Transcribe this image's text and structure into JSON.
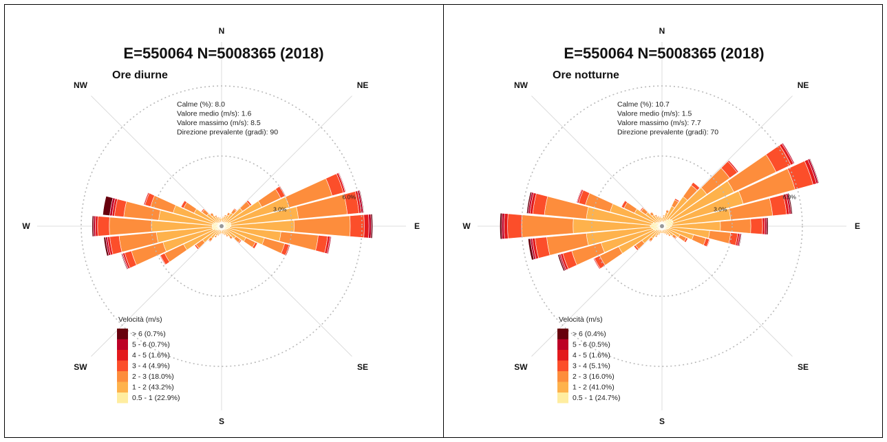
{
  "chart_data": [
    {
      "type": "wind-rose",
      "title": "E=550064 N=5008365 (2018)",
      "subtitle": "Ore diurne",
      "compass": [
        "N",
        "NE",
        "E",
        "SE",
        "S",
        "SW",
        "W",
        "NW"
      ],
      "stats": {
        "calme": "Calme (%): 8.0",
        "medio": "Valore medio (m/s): 1.6",
        "massimo": "Valore massimo (m/s): 8.5",
        "direzione": "Direzione prevalente (gradi): 90"
      },
      "rings": [
        {
          "value": 3.0,
          "label": "3.0%"
        },
        {
          "value": 6.0,
          "label": "6.0%"
        }
      ],
      "legend_title": "Velocità (m/s)",
      "legend": [
        {
          "label": "> 6 (0.7%)",
          "color": "#67000d"
        },
        {
          "label": "5 - 6 (0.7%)",
          "color": "#bd0026"
        },
        {
          "label": "4 - 5 (1.6%)",
          "color": "#e31a1c"
        },
        {
          "label": "3 - 4 (4.9%)",
          "color": "#fc4e2a"
        },
        {
          "label": "2 - 3 (18.0%)",
          "color": "#fd8d3c"
        },
        {
          "label": "1 - 2 (43.2%)",
          "color": "#feb24c"
        },
        {
          "label": "0.5 - 1 (22.9%)",
          "color": "#ffeda0"
        }
      ],
      "sectors": [
        {
          "dir": 0,
          "values": [
            0.16,
            0.18,
            0.02,
            0,
            0,
            0,
            0
          ]
        },
        {
          "dir": 10,
          "values": [
            0.16,
            0.22,
            0.03,
            0,
            0,
            0,
            0
          ]
        },
        {
          "dir": 20,
          "values": [
            0.17,
            0.28,
            0.06,
            0.01,
            0,
            0,
            0
          ]
        },
        {
          "dir": 30,
          "values": [
            0.18,
            0.35,
            0.12,
            0.02,
            0,
            0,
            0
          ]
        },
        {
          "dir": 40,
          "values": [
            0.2,
            0.5,
            0.2,
            0.04,
            0,
            0,
            0
          ]
        },
        {
          "dir": 50,
          "values": [
            0.25,
            0.85,
            0.4,
            0.08,
            0.01,
            0,
            0
          ]
        },
        {
          "dir": 60,
          "values": [
            0.3,
            1.6,
            0.9,
            0.2,
            0.03,
            0,
            0
          ]
        },
        {
          "dir": 70,
          "values": [
            0.4,
            2.6,
            1.9,
            0.5,
            0.08,
            0.03,
            0.02
          ]
        },
        {
          "dir": 80,
          "values": [
            0.4,
            2.9,
            2.1,
            0.5,
            0.1,
            0.08,
            0.03
          ]
        },
        {
          "dir": 90,
          "values": [
            0.4,
            2.7,
            2.4,
            0.6,
            0.2,
            0.1,
            0.06
          ]
        },
        {
          "dir": 100,
          "values": [
            0.35,
            2.2,
            1.6,
            0.4,
            0.1,
            0.05,
            0.02
          ]
        },
        {
          "dir": 110,
          "values": [
            0.3,
            1.6,
            0.9,
            0.2,
            0.04,
            0,
            0
          ]
        },
        {
          "dir": 120,
          "values": [
            0.25,
            0.9,
            0.45,
            0.1,
            0.01,
            0,
            0
          ]
        },
        {
          "dir": 130,
          "values": [
            0.2,
            0.55,
            0.25,
            0.05,
            0,
            0,
            0
          ]
        },
        {
          "dir": 140,
          "values": [
            0.18,
            0.38,
            0.12,
            0.02,
            0,
            0,
            0
          ]
        },
        {
          "dir": 150,
          "values": [
            0.16,
            0.28,
            0.07,
            0.01,
            0,
            0,
            0
          ]
        },
        {
          "dir": 160,
          "values": [
            0.15,
            0.22,
            0.04,
            0,
            0,
            0,
            0
          ]
        },
        {
          "dir": 170,
          "values": [
            0.15,
            0.18,
            0.03,
            0,
            0,
            0,
            0
          ]
        },
        {
          "dir": 180,
          "values": [
            0.15,
            0.17,
            0.02,
            0,
            0,
            0,
            0
          ]
        },
        {
          "dir": 190,
          "values": [
            0.15,
            0.18,
            0.03,
            0,
            0,
            0,
            0
          ]
        },
        {
          "dir": 200,
          "values": [
            0.16,
            0.22,
            0.05,
            0,
            0,
            0,
            0
          ]
        },
        {
          "dir": 210,
          "values": [
            0.17,
            0.3,
            0.08,
            0.01,
            0,
            0,
            0
          ]
        },
        {
          "dir": 220,
          "values": [
            0.2,
            0.45,
            0.15,
            0.03,
            0,
            0,
            0
          ]
        },
        {
          "dir": 230,
          "values": [
            0.25,
            0.75,
            0.35,
            0.07,
            0.01,
            0,
            0
          ]
        },
        {
          "dir": 240,
          "values": [
            0.3,
            1.5,
            0.9,
            0.2,
            0.03,
            0.01,
            0
          ]
        },
        {
          "dir": 250,
          "values": [
            0.4,
            2.2,
            1.4,
            0.3,
            0.08,
            0.04,
            0.03
          ]
        },
        {
          "dir": 260,
          "values": [
            0.4,
            2.4,
            1.6,
            0.4,
            0.1,
            0.08,
            0.08
          ]
        },
        {
          "dir": 270,
          "values": [
            0.4,
            2.6,
            1.8,
            0.5,
            0.1,
            0.08,
            0.06
          ]
        },
        {
          "dir": 280,
          "values": [
            0.4,
            2.3,
            1.5,
            0.4,
            0.1,
            0.1,
            0.3
          ]
        },
        {
          "dir": 290,
          "values": [
            0.35,
            1.8,
            1.0,
            0.25,
            0.05,
            0.02,
            0
          ]
        },
        {
          "dir": 300,
          "values": [
            0.3,
            1.0,
            0.5,
            0.12,
            0.02,
            0,
            0
          ]
        },
        {
          "dir": 310,
          "values": [
            0.22,
            0.55,
            0.25,
            0.05,
            0,
            0,
            0
          ]
        },
        {
          "dir": 320,
          "values": [
            0.19,
            0.38,
            0.13,
            0.02,
            0,
            0,
            0
          ]
        },
        {
          "dir": 330,
          "values": [
            0.17,
            0.28,
            0.07,
            0.01,
            0,
            0,
            0
          ]
        },
        {
          "dir": 340,
          "values": [
            0.16,
            0.22,
            0.04,
            0,
            0,
            0,
            0
          ]
        },
        {
          "dir": 350,
          "values": [
            0.16,
            0.19,
            0.03,
            0,
            0,
            0,
            0
          ]
        }
      ]
    },
    {
      "type": "wind-rose",
      "title": "E=550064 N=5008365 (2018)",
      "subtitle": "Ore notturne",
      "compass": [
        "N",
        "NE",
        "E",
        "SE",
        "S",
        "SW",
        "W",
        "NW"
      ],
      "stats": {
        "calme": "Calme (%): 10.7",
        "medio": "Valore medio (m/s): 1.5",
        "massimo": "Valore massimo (m/s): 7.7",
        "direzione": "Direzione prevalente (gradi): 70"
      },
      "rings": [
        {
          "value": 3.0,
          "label": "3.0%"
        },
        {
          "value": 6.0,
          "label": "6.0%"
        }
      ],
      "legend_title": "Velocità (m/s)",
      "legend": [
        {
          "label": "> 6 (0.4%)",
          "color": "#67000d"
        },
        {
          "label": "5 - 6 (0.5%)",
          "color": "#bd0026"
        },
        {
          "label": "4 - 5 (1.6%)",
          "color": "#e31a1c"
        },
        {
          "label": "3 - 4 (5.1%)",
          "color": "#fc4e2a"
        },
        {
          "label": "2 - 3 (16.0%)",
          "color": "#fd8d3c"
        },
        {
          "label": "1 - 2 (41.0%)",
          "color": "#feb24c"
        },
        {
          "label": "0.5 - 1 (24.7%)",
          "color": "#ffeda0"
        }
      ],
      "sectors": [
        {
          "dir": 0,
          "values": [
            0.18,
            0.18,
            0.02,
            0,
            0,
            0,
            0
          ]
        },
        {
          "dir": 10,
          "values": [
            0.18,
            0.25,
            0.05,
            0,
            0,
            0,
            0
          ]
        },
        {
          "dir": 20,
          "values": [
            0.2,
            0.4,
            0.12,
            0.02,
            0,
            0,
            0
          ]
        },
        {
          "dir": 30,
          "values": [
            0.25,
            0.7,
            0.3,
            0.06,
            0,
            0,
            0
          ]
        },
        {
          "dir": 40,
          "values": [
            0.35,
            1.2,
            0.6,
            0.15,
            0.02,
            0,
            0
          ]
        },
        {
          "dir": 50,
          "values": [
            0.45,
            1.9,
            1.2,
            0.4,
            0.06,
            0.02,
            0
          ]
        },
        {
          "dir": 60,
          "values": [
            0.5,
            2.9,
            2.0,
            0.7,
            0.12,
            0.05,
            0.02
          ]
        },
        {
          "dir": 70,
          "values": [
            0.5,
            3.1,
            2.3,
            0.8,
            0.15,
            0.08,
            0.03
          ]
        },
        {
          "dir": 80,
          "values": [
            0.45,
            2.5,
            1.8,
            0.6,
            0.12,
            0.08,
            0.05
          ]
        },
        {
          "dir": 90,
          "values": [
            0.4,
            2.1,
            1.3,
            0.5,
            0.1,
            0.08,
            0.06
          ]
        },
        {
          "dir": 100,
          "values": [
            0.35,
            1.7,
            0.9,
            0.3,
            0.08,
            0.06,
            0.03
          ]
        },
        {
          "dir": 110,
          "values": [
            0.3,
            1.1,
            0.55,
            0.15,
            0.03,
            0.01,
            0
          ]
        },
        {
          "dir": 120,
          "values": [
            0.25,
            0.6,
            0.3,
            0.08,
            0.01,
            0,
            0
          ]
        },
        {
          "dir": 130,
          "values": [
            0.2,
            0.4,
            0.15,
            0.04,
            0,
            0,
            0
          ]
        },
        {
          "dir": 140,
          "values": [
            0.18,
            0.28,
            0.08,
            0.01,
            0,
            0,
            0
          ]
        },
        {
          "dir": 150,
          "values": [
            0.16,
            0.22,
            0.05,
            0,
            0,
            0,
            0
          ]
        },
        {
          "dir": 160,
          "values": [
            0.15,
            0.18,
            0.03,
            0,
            0,
            0,
            0
          ]
        },
        {
          "dir": 170,
          "values": [
            0.15,
            0.16,
            0.02,
            0,
            0,
            0,
            0
          ]
        },
        {
          "dir": 180,
          "values": [
            0.15,
            0.15,
            0.02,
            0,
            0,
            0,
            0
          ]
        },
        {
          "dir": 190,
          "values": [
            0.15,
            0.16,
            0.02,
            0,
            0,
            0,
            0
          ]
        },
        {
          "dir": 200,
          "values": [
            0.16,
            0.2,
            0.04,
            0,
            0,
            0,
            0
          ]
        },
        {
          "dir": 210,
          "values": [
            0.18,
            0.28,
            0.07,
            0.01,
            0,
            0,
            0
          ]
        },
        {
          "dir": 220,
          "values": [
            0.2,
            0.45,
            0.15,
            0.03,
            0,
            0,
            0
          ]
        },
        {
          "dir": 230,
          "values": [
            0.25,
            0.8,
            0.35,
            0.08,
            0.01,
            0,
            0
          ]
        },
        {
          "dir": 240,
          "values": [
            0.35,
            1.7,
            0.9,
            0.25,
            0.04,
            0.02,
            0
          ]
        },
        {
          "dir": 250,
          "values": [
            0.4,
            2.3,
            1.3,
            0.4,
            0.1,
            0.06,
            0.06
          ]
        },
        {
          "dir": 260,
          "values": [
            0.45,
            2.8,
            1.7,
            0.5,
            0.12,
            0.08,
            0.1
          ]
        },
        {
          "dir": 270,
          "values": [
            0.5,
            3.3,
            2.2,
            0.6,
            0.15,
            0.1,
            0.08
          ]
        },
        {
          "dir": 280,
          "values": [
            0.45,
            2.8,
            1.8,
            0.5,
            0.12,
            0.08,
            0.06
          ]
        },
        {
          "dir": 290,
          "values": [
            0.4,
            1.9,
            1.1,
            0.3,
            0.06,
            0.03,
            0
          ]
        },
        {
          "dir": 300,
          "values": [
            0.3,
            1.0,
            0.5,
            0.12,
            0.02,
            0,
            0
          ]
        },
        {
          "dir": 310,
          "values": [
            0.25,
            0.6,
            0.25,
            0.05,
            0,
            0,
            0
          ]
        },
        {
          "dir": 320,
          "values": [
            0.2,
            0.4,
            0.14,
            0.02,
            0,
            0,
            0
          ]
        },
        {
          "dir": 330,
          "values": [
            0.18,
            0.3,
            0.07,
            0.01,
            0,
            0,
            0
          ]
        },
        {
          "dir": 340,
          "values": [
            0.18,
            0.24,
            0.04,
            0,
            0,
            0,
            0
          ]
        },
        {
          "dir": 350,
          "values": [
            0.18,
            0.2,
            0.03,
            0,
            0,
            0,
            0
          ]
        }
      ]
    }
  ]
}
